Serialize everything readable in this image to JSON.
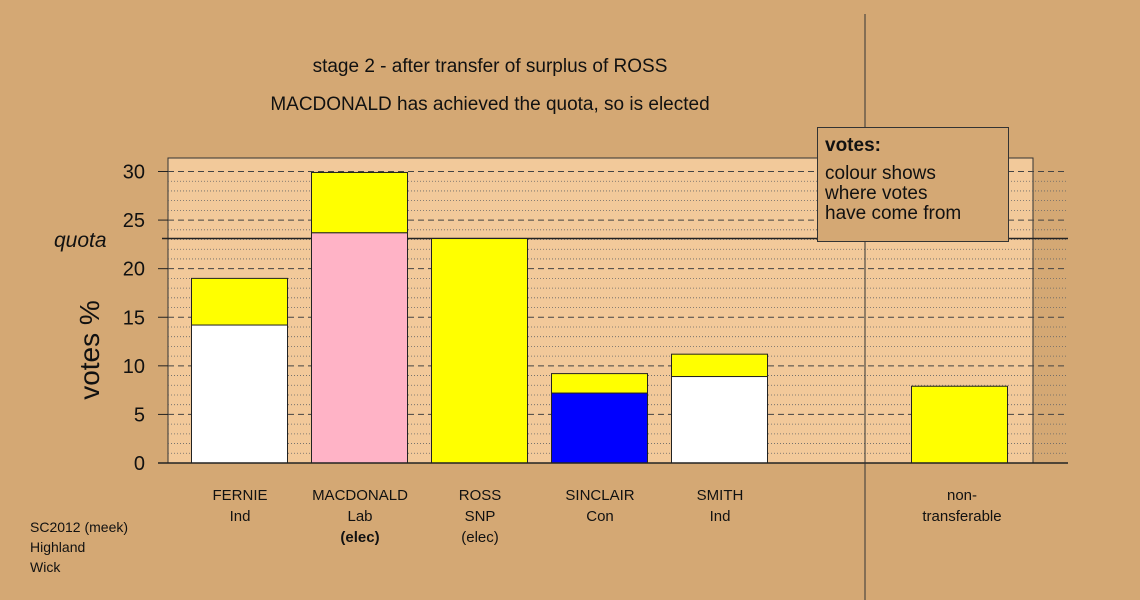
{
  "title": {
    "line1": "stage 2 - after transfer of surplus of ROSS",
    "line2": "MACDONALD has achieved the quota, so is elected"
  },
  "legend": {
    "heading": "votes:",
    "lines": [
      "colour shows",
      "where votes",
      "have come from"
    ]
  },
  "footer": {
    "lines": [
      "SC2012 (meek)",
      "Highland",
      "Wick"
    ]
  },
  "colors": {
    "background": "#d4a874",
    "plot_background": "#f2c99a",
    "transfer_yellow": "#ffff00",
    "Ind": "#ffffff",
    "Lab": "#ffb3c6",
    "SNP": "#ffff00",
    "Con": "#0000ff"
  },
  "chart_data": {
    "type": "bar",
    "stacked": true,
    "title": "stage 2 - after transfer of surplus of ROSS",
    "subtitle": "MACDONALD has achieved the quota, so is elected",
    "ylabel": "votes %",
    "ylim": [
      0,
      31
    ],
    "yticks": [
      0,
      5,
      10,
      15,
      20,
      25,
      30
    ],
    "quota": 23.1,
    "quota_label": "quota",
    "grid": true,
    "categories": [
      {
        "name": "FERNIE",
        "party": "Ind",
        "status": ""
      },
      {
        "name": "MACDONALD",
        "party": "Lab",
        "status": "(elec)",
        "bold_status": true
      },
      {
        "name": "ROSS",
        "party": "SNP",
        "status": "(elec)"
      },
      {
        "name": "SINCLAIR",
        "party": "Con",
        "status": ""
      },
      {
        "name": "SMITH",
        "party": "Ind",
        "status": ""
      },
      {
        "name": "",
        "party": "",
        "status": ""
      },
      {
        "name": "non-",
        "party": "transferable",
        "status": ""
      }
    ],
    "series": [
      {
        "color": "party",
        "values": [
          14.2,
          23.7,
          23.1,
          7.2,
          8.9,
          0,
          0
        ]
      },
      {
        "color": "#ffff00",
        "values": [
          4.8,
          6.2,
          0,
          2.0,
          2.3,
          0,
          7.9
        ]
      }
    ],
    "first_preference_colors": [
      "#ffffff",
      "#ffb3c6",
      "#ffff00",
      "#0000ff",
      "#ffffff",
      "#ffffff",
      "#ffff00"
    ]
  }
}
